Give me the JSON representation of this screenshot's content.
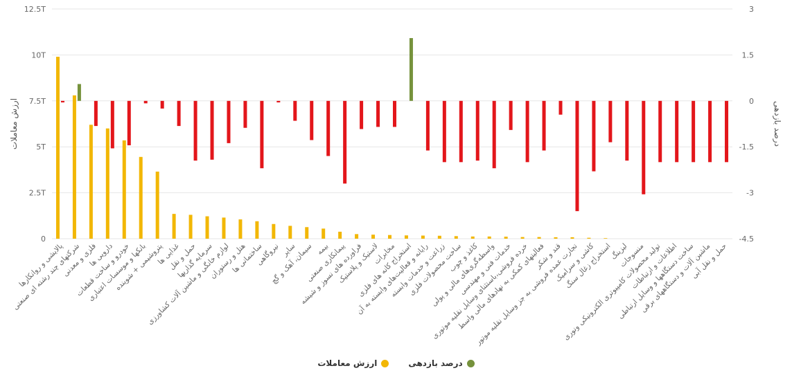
{
  "chart_data": {
    "type": "bar",
    "categories": [
      "پالایشی و روانکارها",
      "شرکتهای چند رشته ای صنعتی",
      "فلزی و معدنی",
      "دارویی ها",
      "خودرو و ساخت قطعات",
      "بانکها و موسسات اعتباری",
      "پتروشیمی + شوینده",
      "غذایی ها",
      "حمل و نقل",
      "سرمایه گذاریها",
      "لوازم خانگی و ماشین آلات کشاورزی",
      "هتل و رستوران",
      "ساختمانی ها",
      "نیروگاهی",
      "سایر",
      "سیمان، آهک و گچ",
      "بیمه",
      "پیمانکاری صنعتی",
      "فراورده های نسوز و شیشه",
      "لاستیک و پلاستیک",
      "مخابرات",
      "استخراج کانه های فلزی",
      "رایانه و فعالیت‌های وابسته به آن",
      "زراعت و خدمات وابسته",
      "ساخت محصولات فلزی",
      "کاغذ و چوب",
      "واسطه‌گری‌های مالی و پولی",
      "خدمات فنی و مهندسی",
      "خرده فروشی،باستثنای وسایل نقلیه موتوری",
      "فعالیتهای کمکی به نهادهای مالی واسط",
      "قند و شکر",
      "تجارت عمده فروشی به جز وسایل نقلیه موتور",
      "کاشی و سرامیک",
      "استخراج زغال سنگ",
      "لیزینگ",
      "منسوجات",
      "تولید محصولات کامپیوتری الکترونیکی ونوری",
      "اطلاعات و ارتباطات",
      "ساخت دستگاهها و وسایل ارتباطی",
      "ماشین آلات و دستگاههای برقی",
      "حمل و نقل آبی"
    ],
    "series": [
      {
        "name": "ارزش معاملات",
        "color": "#f2b705",
        "axis": "left",
        "values": [
          9.9,
          7.8,
          6.2,
          6.0,
          5.35,
          4.45,
          3.65,
          1.35,
          1.3,
          1.22,
          1.15,
          1.05,
          0.95,
          0.8,
          0.7,
          0.63,
          0.55,
          0.38,
          0.25,
          0.22,
          0.2,
          0.18,
          0.17,
          0.16,
          0.14,
          0.12,
          0.12,
          0.11,
          0.09,
          0.09,
          0.08,
          0.08,
          0.05,
          0.03,
          0,
          0,
          0,
          0,
          0,
          0,
          0
        ]
      },
      {
        "name": "درصد بازدهی",
        "axis": "right",
        "values": [
          -0.05,
          0.55,
          -0.82,
          -1.55,
          -1.45,
          -0.08,
          -0.25,
          -0.82,
          -1.95,
          -1.92,
          -1.38,
          -0.88,
          -2.2,
          -0.05,
          -0.65,
          -1.28,
          -1.8,
          -2.7,
          -0.92,
          -0.85,
          -0.85,
          2.05,
          -1.62,
          -2.0,
          -2.0,
          -1.95,
          -2.2,
          -0.95,
          -2.0,
          -1.62,
          -0.45,
          -3.6,
          -2.3,
          -1.35,
          -1.95,
          -3.05,
          -2.0,
          -2.0,
          -2.0,
          -2.0,
          -2.0
        ],
        "positive_color": "#76923c",
        "negative_color": "#e3161b"
      }
    ],
    "y_left": {
      "label": "ارزش معاملات",
      "ticks": [
        0,
        2.5,
        5,
        7.5,
        10,
        12.5
      ],
      "tick_labels": [
        "0",
        "2.5T",
        "5T",
        "7.5T",
        "10T",
        "12.5T"
      ],
      "ylim": [
        0,
        12.5
      ]
    },
    "y_right": {
      "label": "درصد بازدهی",
      "ticks": [
        -4.5,
        -3,
        -1.5,
        0,
        1.5,
        3
      ],
      "tick_labels": [
        "-4.5",
        "-3",
        "-1.5",
        "0",
        "1.5",
        "3"
      ],
      "ylim": [
        -4.5,
        3
      ]
    },
    "grid": true,
    "legend_position": "bottom-center"
  },
  "legend": {
    "items": [
      {
        "label": "درصد بازدهی",
        "color": "#76923c"
      },
      {
        "label": "ارزش معاملات",
        "color": "#f2b705"
      }
    ]
  }
}
